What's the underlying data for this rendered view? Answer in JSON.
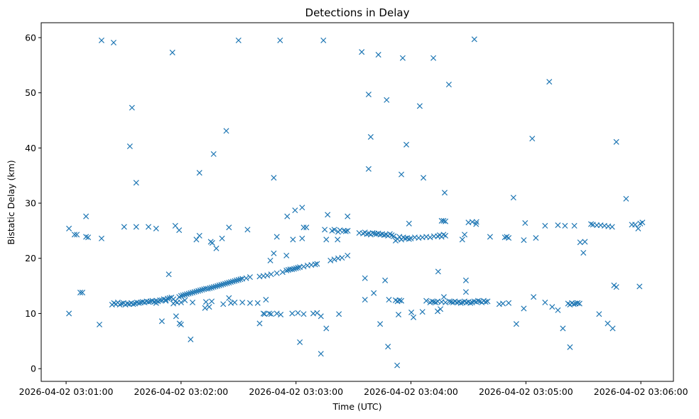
{
  "chart_data": {
    "type": "scatter",
    "title": "Detections in Delay",
    "xlabel": "Time (UTC)",
    "ylabel": "Bistatic Delay (km)",
    "x_units": "seconds after 2026-04-02 03:01:00",
    "xlim": [
      -13,
      317
    ],
    "ylim": [
      -2.3,
      62.7
    ],
    "grid": false,
    "marker": "x",
    "color": "#1f77b4",
    "xticks": [
      {
        "value": 0,
        "label": "2026-04-02 03:01:00"
      },
      {
        "value": 60,
        "label": "2026-04-02 03:02:00"
      },
      {
        "value": 120,
        "label": "2026-04-02 03:03:00"
      },
      {
        "value": 180,
        "label": "2026-04-02 03:04:00"
      },
      {
        "value": 240,
        "label": "2026-04-02 03:05:00"
      },
      {
        "value": 300,
        "label": "2026-04-02 03:06:00"
      }
    ],
    "yticks": [
      {
        "value": 0,
        "label": "0"
      },
      {
        "value": 10,
        "label": "10"
      },
      {
        "value": 20,
        "label": "20"
      },
      {
        "value": 30,
        "label": "30"
      },
      {
        "value": 40,
        "label": "40"
      },
      {
        "value": 50,
        "label": "50"
      },
      {
        "value": 60,
        "label": "60"
      }
    ],
    "points": [
      [
        1.5,
        10.0
      ],
      [
        1.5,
        25.4
      ],
      [
        4.4,
        24.3
      ],
      [
        5.6,
        24.3
      ],
      [
        7.4,
        13.8
      ],
      [
        8.5,
        13.8
      ],
      [
        10.4,
        27.6
      ],
      [
        10.4,
        23.9
      ],
      [
        11.5,
        23.8
      ],
      [
        17.4,
        8.0
      ],
      [
        18.5,
        23.6
      ],
      [
        18.5,
        59.5
      ],
      [
        24.8,
        59.1
      ],
      [
        30.3,
        25.7
      ],
      [
        33.3,
        40.3
      ],
      [
        34.4,
        47.3
      ],
      [
        36.6,
        33.7
      ],
      [
        36.6,
        25.7
      ],
      [
        43,
        25.7
      ],
      [
        47,
        25.4
      ],
      [
        50,
        8.6
      ],
      [
        53.6,
        17.1
      ],
      [
        55.5,
        57.3
      ],
      [
        57,
        25.9
      ],
      [
        57.4,
        9.5
      ],
      [
        59,
        25.1
      ],
      [
        59.2,
        8.2
      ],
      [
        60,
        8.0
      ],
      [
        65,
        5.3
      ],
      [
        68,
        23.4
      ],
      [
        69.6,
        35.5
      ],
      [
        69.6,
        24.1
      ],
      [
        72.5,
        11.0
      ],
      [
        74.7,
        11.2
      ],
      [
        75.5,
        23.0
      ],
      [
        76.3,
        22.8
      ],
      [
        77,
        38.9
      ],
      [
        78.4,
        21.8
      ],
      [
        81.4,
        23.6
      ],
      [
        83.6,
        43.1
      ],
      [
        85,
        12.8
      ],
      [
        85,
        25.6
      ],
      [
        90,
        59.5
      ],
      [
        94.7,
        25.2
      ],
      [
        101,
        8.2
      ],
      [
        103.6,
        9.9
      ],
      [
        104.3,
        12.5
      ],
      [
        106.6,
        19.6
      ],
      [
        108.4,
        34.6
      ],
      [
        108.4,
        20.9
      ],
      [
        110,
        23.9
      ],
      [
        111.7,
        59.5
      ],
      [
        115,
        20.5
      ],
      [
        115.4,
        27.6
      ],
      [
        118.4,
        23.4
      ],
      [
        119.5,
        28.7
      ],
      [
        122,
        4.8
      ],
      [
        123.2,
        29.2
      ],
      [
        123.2,
        23.6
      ],
      [
        124,
        25.6
      ],
      [
        125.4,
        25.6
      ],
      [
        133,
        2.7
      ],
      [
        134.3,
        59.5
      ],
      [
        135,
        25.2
      ],
      [
        135.8,
        7.3
      ],
      [
        136.5,
        27.9
      ],
      [
        135.8,
        23.4
      ],
      [
        138.8,
        25.0
      ],
      [
        141.7,
        23.4
      ],
      [
        142.4,
        9.9
      ],
      [
        146.9,
        27.6
      ],
      [
        146.9,
        20.5
      ],
      [
        154.3,
        57.4
      ],
      [
        156,
        12.5
      ],
      [
        156,
        16.4
      ],
      [
        157.9,
        49.7
      ],
      [
        157.9,
        36.2
      ],
      [
        159,
        42.0
      ],
      [
        160.6,
        13.7
      ],
      [
        163,
        56.9
      ],
      [
        163.9,
        8.1
      ],
      [
        166.5,
        16.0
      ],
      [
        167.3,
        48.7
      ],
      [
        168,
        4.0
      ],
      [
        168.5,
        12.5
      ],
      [
        172.8,
        0.6
      ],
      [
        173.5,
        9.8
      ],
      [
        175,
        35.2
      ],
      [
        175.7,
        56.3
      ],
      [
        177.6,
        40.6
      ],
      [
        179,
        26.3
      ],
      [
        180.2,
        10.2
      ],
      [
        181.3,
        9.3
      ],
      [
        184.6,
        47.6
      ],
      [
        186,
        10.3
      ],
      [
        186.5,
        34.6
      ],
      [
        191.7,
        56.3
      ],
      [
        193.9,
        10.4
      ],
      [
        194.2,
        17.6
      ],
      [
        195.4,
        10.8
      ],
      [
        197.2,
        13.0
      ],
      [
        197.6,
        31.9
      ],
      [
        199.8,
        51.5
      ],
      [
        206.8,
        23.4
      ],
      [
        208,
        24.3
      ],
      [
        208.7,
        16.0
      ],
      [
        208.7,
        13.9
      ],
      [
        213.1,
        59.7
      ],
      [
        214.2,
        26.6
      ],
      [
        221.3,
        23.9
      ],
      [
        226.1,
        11.7
      ],
      [
        233.5,
        31.0
      ],
      [
        235,
        8.1
      ],
      [
        239.6,
        26.4
      ],
      [
        238.9,
        23.3
      ],
      [
        238.9,
        10.9
      ],
      [
        243.3,
        41.7
      ],
      [
        244,
        13.0
      ],
      [
        245.2,
        23.7
      ],
      [
        250,
        12.0
      ],
      [
        252.2,
        52.0
      ],
      [
        253.7,
        11.2
      ],
      [
        256.7,
        26.0
      ],
      [
        256.7,
        10.6
      ],
      [
        259.3,
        7.3
      ],
      [
        260.4,
        25.9
      ],
      [
        263,
        3.9
      ],
      [
        265.3,
        25.9
      ],
      [
        268.3,
        22.9
      ],
      [
        270,
        21.0
      ],
      [
        270.8,
        23.0
      ],
      [
        278.2,
        9.9
      ],
      [
        282.7,
        8.2
      ],
      [
        285.3,
        7.3
      ],
      [
        286,
        15.1
      ],
      [
        287.2,
        14.8
      ],
      [
        287.2,
        41.1
      ],
      [
        292.3,
        30.8
      ],
      [
        295.3,
        26.1
      ],
      [
        297,
        26.1
      ],
      [
        298.6,
        25.4
      ],
      [
        299.3,
        14.9
      ],
      [
        299.7,
        26.3
      ],
      [
        300.8,
        26.5
      ],
      [
        24,
        11.6
      ],
      [
        25,
        11.9
      ],
      [
        26,
        11.7
      ],
      [
        27,
        12.0
      ],
      [
        28,
        11.6
      ],
      [
        29,
        11.8
      ],
      [
        30,
        11.9
      ],
      [
        31,
        11.6
      ],
      [
        32,
        11.8
      ],
      [
        33,
        11.7
      ],
      [
        34,
        11.9
      ],
      [
        35,
        11.7
      ],
      [
        36,
        11.8
      ],
      [
        37,
        12.0
      ],
      [
        38,
        11.9
      ],
      [
        39,
        12.0
      ],
      [
        40,
        12.1
      ],
      [
        41,
        12.0
      ],
      [
        42,
        12.2
      ],
      [
        43,
        12.1
      ],
      [
        44,
        12.2
      ],
      [
        45,
        12.3
      ],
      [
        46,
        12.1
      ],
      [
        47,
        12.3
      ],
      [
        48,
        12.2
      ],
      [
        49,
        12.4
      ],
      [
        50,
        12.4
      ],
      [
        51,
        12.6
      ],
      [
        52,
        12.5
      ],
      [
        53,
        12.7
      ],
      [
        54,
        12.8
      ],
      [
        55,
        12.9
      ],
      [
        56,
        12.6
      ],
      [
        57,
        12.2
      ],
      [
        58,
        12.0
      ],
      [
        59,
        13.0
      ],
      [
        60,
        13.2
      ],
      [
        61,
        13.3
      ],
      [
        62,
        13.4
      ],
      [
        63,
        13.5
      ],
      [
        64,
        13.6
      ],
      [
        65,
        13.7
      ],
      [
        66,
        13.8
      ],
      [
        67,
        13.9
      ],
      [
        68,
        14.0
      ],
      [
        69,
        14.1
      ],
      [
        70,
        14.2
      ],
      [
        71,
        14.3
      ],
      [
        72,
        14.4
      ],
      [
        73,
        14.5
      ],
      [
        74,
        14.5
      ],
      [
        75,
        14.6
      ],
      [
        76,
        14.7
      ],
      [
        77,
        14.8
      ],
      [
        78,
        14.9
      ],
      [
        79,
        15.0
      ],
      [
        80,
        15.1
      ],
      [
        81,
        15.2
      ],
      [
        82,
        15.3
      ],
      [
        83,
        15.4
      ],
      [
        84,
        15.5
      ],
      [
        85,
        15.6
      ],
      [
        86,
        15.7
      ],
      [
        87,
        15.8
      ],
      [
        88,
        15.9
      ],
      [
        89,
        16.0
      ],
      [
        90,
        16.1
      ],
      [
        91,
        16.2
      ],
      [
        92,
        16.3
      ],
      [
        94,
        16.4
      ],
      [
        96,
        16.6
      ],
      [
        101,
        16.7
      ],
      [
        103,
        16.8
      ],
      [
        105,
        16.9
      ],
      [
        107,
        17.1
      ],
      [
        110,
        17.3
      ],
      [
        113,
        17.5
      ],
      [
        115,
        17.8
      ],
      [
        116,
        17.9
      ],
      [
        117,
        18.0
      ],
      [
        118,
        18.0
      ],
      [
        119,
        18.1
      ],
      [
        120,
        18.2
      ],
      [
        121,
        18.3
      ],
      [
        122,
        18.4
      ],
      [
        124,
        18.5
      ],
      [
        126,
        18.7
      ],
      [
        128,
        18.8
      ],
      [
        130,
        18.9
      ],
      [
        131,
        19.0
      ],
      [
        138,
        19.6
      ],
      [
        140,
        19.8
      ],
      [
        142,
        20.0
      ],
      [
        144,
        20.1
      ],
      [
        47,
        11.9
      ],
      [
        52,
        12.3
      ],
      [
        56,
        11.8
      ],
      [
        60,
        12.0
      ],
      [
        62,
        12.4
      ],
      [
        66,
        12.0
      ],
      [
        73,
        12.1
      ],
      [
        76,
        12.2
      ],
      [
        82,
        11.7
      ],
      [
        86,
        11.9
      ],
      [
        88,
        12.0
      ],
      [
        92,
        12.0
      ],
      [
        96,
        11.9
      ],
      [
        100,
        11.9
      ],
      [
        103,
        10.0
      ],
      [
        106,
        10.0
      ],
      [
        107,
        9.9
      ],
      [
        110,
        10.0
      ],
      [
        112,
        9.8
      ],
      [
        118,
        10.0
      ],
      [
        121,
        10.1
      ],
      [
        124,
        9.9
      ],
      [
        129,
        10.0
      ],
      [
        131,
        10.1
      ],
      [
        133,
        9.5
      ],
      [
        140,
        25.2
      ],
      [
        142,
        24.8
      ],
      [
        143,
        25.1
      ],
      [
        145,
        25.0
      ],
      [
        146,
        24.9
      ],
      [
        147,
        25.0
      ],
      [
        153,
        24.6
      ],
      [
        155,
        24.5
      ],
      [
        156,
        24.7
      ],
      [
        157,
        24.4
      ],
      [
        158,
        24.5
      ],
      [
        159,
        24.3
      ],
      [
        160,
        24.6
      ],
      [
        161,
        24.5
      ],
      [
        162,
        24.4
      ],
      [
        163,
        24.5
      ],
      [
        164,
        24.3
      ],
      [
        165,
        24.4
      ],
      [
        166,
        24.2
      ],
      [
        167,
        24.3
      ],
      [
        168,
        24.1
      ],
      [
        169,
        24.4
      ],
      [
        170,
        24.2
      ],
      [
        171,
        24.0
      ],
      [
        172,
        23.2
      ],
      [
        173,
        23.5
      ],
      [
        174,
        23.9
      ],
      [
        175,
        23.4
      ],
      [
        176,
        23.8
      ],
      [
        177,
        23.6
      ],
      [
        178,
        23.7
      ],
      [
        179,
        23.5
      ],
      [
        180,
        23.6
      ],
      [
        182,
        23.8
      ],
      [
        184,
        23.7
      ],
      [
        186,
        23.8
      ],
      [
        188,
        23.9
      ],
      [
        190,
        23.8
      ],
      [
        192,
        24.0
      ],
      [
        194,
        24.0
      ],
      [
        195,
        24.2
      ],
      [
        196,
        23.9
      ],
      [
        197,
        24.3
      ],
      [
        198,
        24.1
      ],
      [
        196,
        26.8
      ],
      [
        197,
        26.8
      ],
      [
        198,
        26.7
      ],
      [
        172,
        12.4
      ],
      [
        173,
        12.2
      ],
      [
        174,
        12.4
      ],
      [
        175,
        12.3
      ],
      [
        188,
        12.3
      ],
      [
        190,
        12.0
      ],
      [
        191,
        12.2
      ],
      [
        192,
        12.1
      ],
      [
        193,
        12.0
      ],
      [
        194,
        12.2
      ],
      [
        196,
        12.1
      ],
      [
        198,
        12.0
      ],
      [
        200,
        12.2
      ],
      [
        201,
        12.1
      ],
      [
        202,
        12.0
      ],
      [
        203,
        12.2
      ],
      [
        204,
        12.0
      ],
      [
        205,
        12.1
      ],
      [
        206,
        11.9
      ],
      [
        207,
        12.0
      ],
      [
        208,
        12.2
      ],
      [
        209,
        12.0
      ],
      [
        210,
        12.1
      ],
      [
        211,
        11.9
      ],
      [
        212,
        12.0
      ],
      [
        213,
        12.2
      ],
      [
        214,
        12.1
      ],
      [
        215,
        12.3
      ],
      [
        216,
        12.2
      ],
      [
        217,
        12.0
      ],
      [
        218,
        12.3
      ],
      [
        219,
        12.1
      ],
      [
        220,
        12.2
      ],
      [
        228,
        11.8
      ],
      [
        231,
        11.9
      ],
      [
        262,
        11.8
      ],
      [
        263,
        11.6
      ],
      [
        264,
        11.9
      ],
      [
        265,
        11.7
      ],
      [
        266,
        11.8
      ],
      [
        267,
        11.9
      ],
      [
        268,
        11.8
      ],
      [
        210,
        26.5
      ],
      [
        212,
        26.6
      ],
      [
        214,
        26.2
      ],
      [
        229,
        23.8
      ],
      [
        230,
        23.9
      ],
      [
        231,
        23.7
      ],
      [
        274,
        26.2
      ],
      [
        275,
        26.1
      ],
      [
        277,
        26.0
      ],
      [
        279,
        26.0
      ],
      [
        281,
        25.9
      ],
      [
        283,
        25.8
      ],
      [
        285,
        25.7
      ],
      [
        250,
        25.9
      ]
    ]
  }
}
